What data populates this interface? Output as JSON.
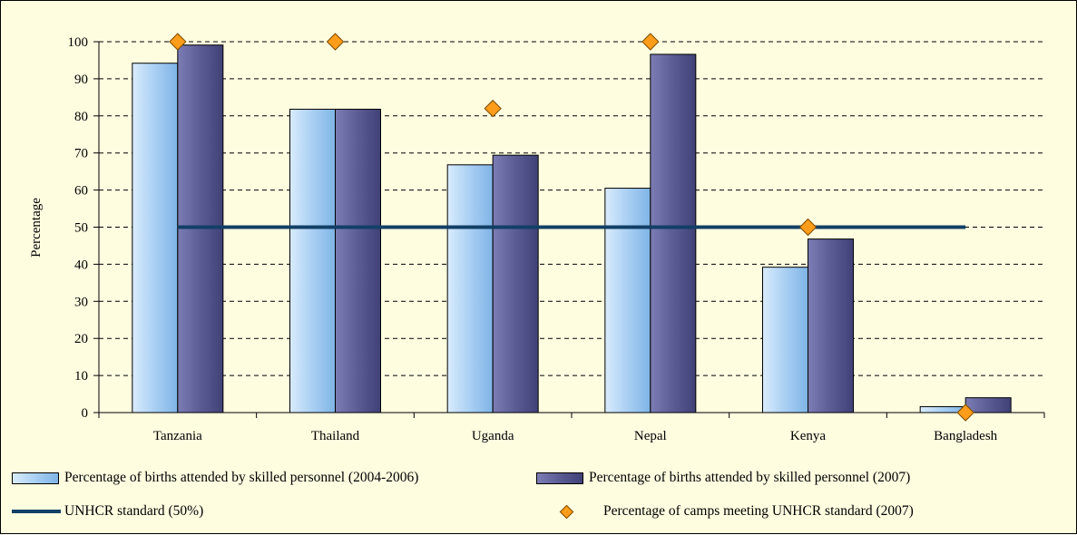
{
  "colors": {
    "background": "#fffde0",
    "series_2004_2006": "#a9cff3",
    "series_2007": "#5b5c94",
    "standard_line": "#123f66",
    "camps_marker": "#ff9d1a"
  },
  "chart_data": {
    "type": "bar",
    "title": "",
    "xlabel": "",
    "ylabel": "Percentage",
    "ylim": [
      0,
      100
    ],
    "yticks": [
      0,
      10,
      20,
      30,
      40,
      50,
      60,
      70,
      80,
      90,
      100
    ],
    "ytick_labels": [
      "0",
      "10",
      "20",
      "30",
      "40",
      "50",
      "60",
      "70",
      "80",
      "90",
      "100"
    ],
    "grid": "horizontal dashed",
    "legend_position": "bottom",
    "categories": [
      "Tanzania",
      "Thailand",
      "Uganda",
      "Nepal",
      "Kenya",
      "Bangladesh"
    ],
    "series": [
      {
        "name": "Percentage of births attended by skilled personnel (2004-2006)",
        "type": "bar",
        "values": [
          94.2,
          81.8,
          66.8,
          60.5,
          39.2,
          1.6
        ]
      },
      {
        "name": "Percentage of births attended by skilled personnel (2007)",
        "type": "bar",
        "values": [
          99.1,
          81.8,
          69.4,
          96.6,
          46.8,
          4.0
        ]
      },
      {
        "name": "UNHCR standard (50%)",
        "type": "line",
        "values": [
          50,
          50,
          50,
          50,
          50,
          50
        ]
      },
      {
        "name": "Percentage of camps meeting UNHCR standard (2007)",
        "type": "scatter",
        "values": [
          100,
          100,
          82,
          100,
          50,
          0
        ]
      }
    ]
  },
  "legend": {
    "items": [
      "Percentage of births attended by skilled personnel (2004-2006)",
      "Percentage of births attended by skilled personnel (2007)",
      "UNHCR standard (50%)",
      "Percentage of camps meeting UNHCR standard (2007)"
    ]
  }
}
